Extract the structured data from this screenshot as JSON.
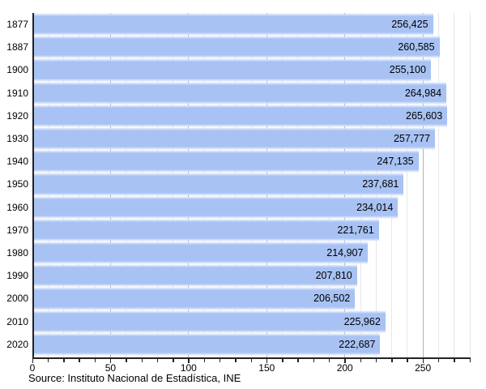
{
  "chart_data": {
    "type": "bar",
    "orientation": "horizontal",
    "title": "",
    "xlabel": "",
    "ylabel": "",
    "categories": [
      "1877",
      "1887",
      "1900",
      "1910",
      "1920",
      "1930",
      "1940",
      "1950",
      "1960",
      "1970",
      "1980",
      "1990",
      "2000",
      "2010",
      "2020"
    ],
    "values": [
      256425,
      260585,
      255100,
      264984,
      265603,
      257777,
      247135,
      237681,
      234014,
      221761,
      214907,
      207810,
      206502,
      225962,
      222687
    ],
    "value_labels": [
      "256,425",
      "260,585",
      "255,100",
      "264,984",
      "265,603",
      "257,777",
      "247,135",
      "237,681",
      "234,014",
      "221,761",
      "214,907",
      "207,810",
      "206,502",
      "225,962",
      "222,687"
    ],
    "x_axis": {
      "min": 0,
      "max": 280,
      "unit_divisor": 1000,
      "minor_tick_step": 10,
      "major_tick_step": 50,
      "major_tick_labels": [
        "0",
        "50",
        "100",
        "150",
        "200",
        "250"
      ]
    },
    "grid": "vertical",
    "legend": "none"
  },
  "colors": {
    "bar_main": "#a8c2f3",
    "bar_edge": "#cddbf9",
    "minor_grid": "#e7e7e7",
    "major_grid": "#b3b3b3",
    "axis": "#222222",
    "text": "#000000"
  },
  "footer": {
    "source_text": "Source: Instituto Nacional de Estadística, INE"
  }
}
